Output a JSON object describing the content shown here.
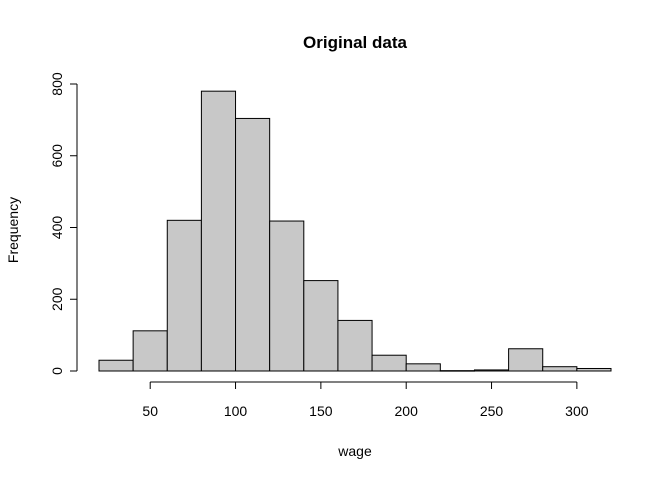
{
  "chart_data": {
    "type": "bar",
    "title": "Original data",
    "xlabel": "wage",
    "ylabel": "Frequency",
    "bin_edges": [
      20,
      40,
      60,
      80,
      100,
      120,
      140,
      160,
      180,
      200,
      220,
      240,
      260,
      280,
      300,
      320
    ],
    "values": [
      30,
      112,
      420,
      780,
      704,
      418,
      252,
      141,
      44,
      20,
      1,
      3,
      62,
      12,
      7
    ],
    "xlim": [
      20,
      320
    ],
    "ylim": [
      0,
      800
    ],
    "x_ticks": [
      50,
      100,
      150,
      200,
      250,
      300
    ],
    "y_ticks": [
      0,
      200,
      400,
      600,
      800
    ],
    "bar_color": "#c8c8c8",
    "grid": false,
    "legend": "none"
  }
}
